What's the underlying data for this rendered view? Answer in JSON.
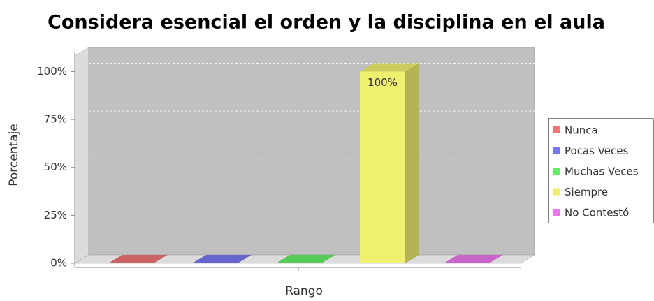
{
  "chart_data": {
    "type": "bar3d",
    "title": "Considera esencial el orden y la disciplina en el aula",
    "y_label": "Porcentaje",
    "x_label": "Rango",
    "categories": [
      null
    ],
    "series": [
      {
        "name": "Nunca",
        "color": "#ef7777",
        "values": [
          0
        ]
      },
      {
        "name": "Pocas Veces",
        "color": "#7777ef",
        "values": [
          0
        ]
      },
      {
        "name": "Muchas Veces",
        "color": "#66ee66",
        "values": [
          0
        ]
      },
      {
        "name": "Siempre",
        "color": "#f0f070",
        "values": [
          100
        ],
        "value_labels": [
          "100%"
        ]
      },
      {
        "name": "No Contestó",
        "color": "#ee77ee",
        "values": [
          0
        ]
      }
    ],
    "ylim": [
      0,
      110
    ],
    "yticks": [
      {
        "value": 0,
        "label": "0%"
      },
      {
        "value": 25,
        "label": "25%"
      },
      {
        "value": 50,
        "label": "50%"
      },
      {
        "value": 75,
        "label": "75%"
      },
      {
        "value": 100,
        "label": "100%"
      }
    ],
    "grid": true,
    "legend": "right"
  }
}
